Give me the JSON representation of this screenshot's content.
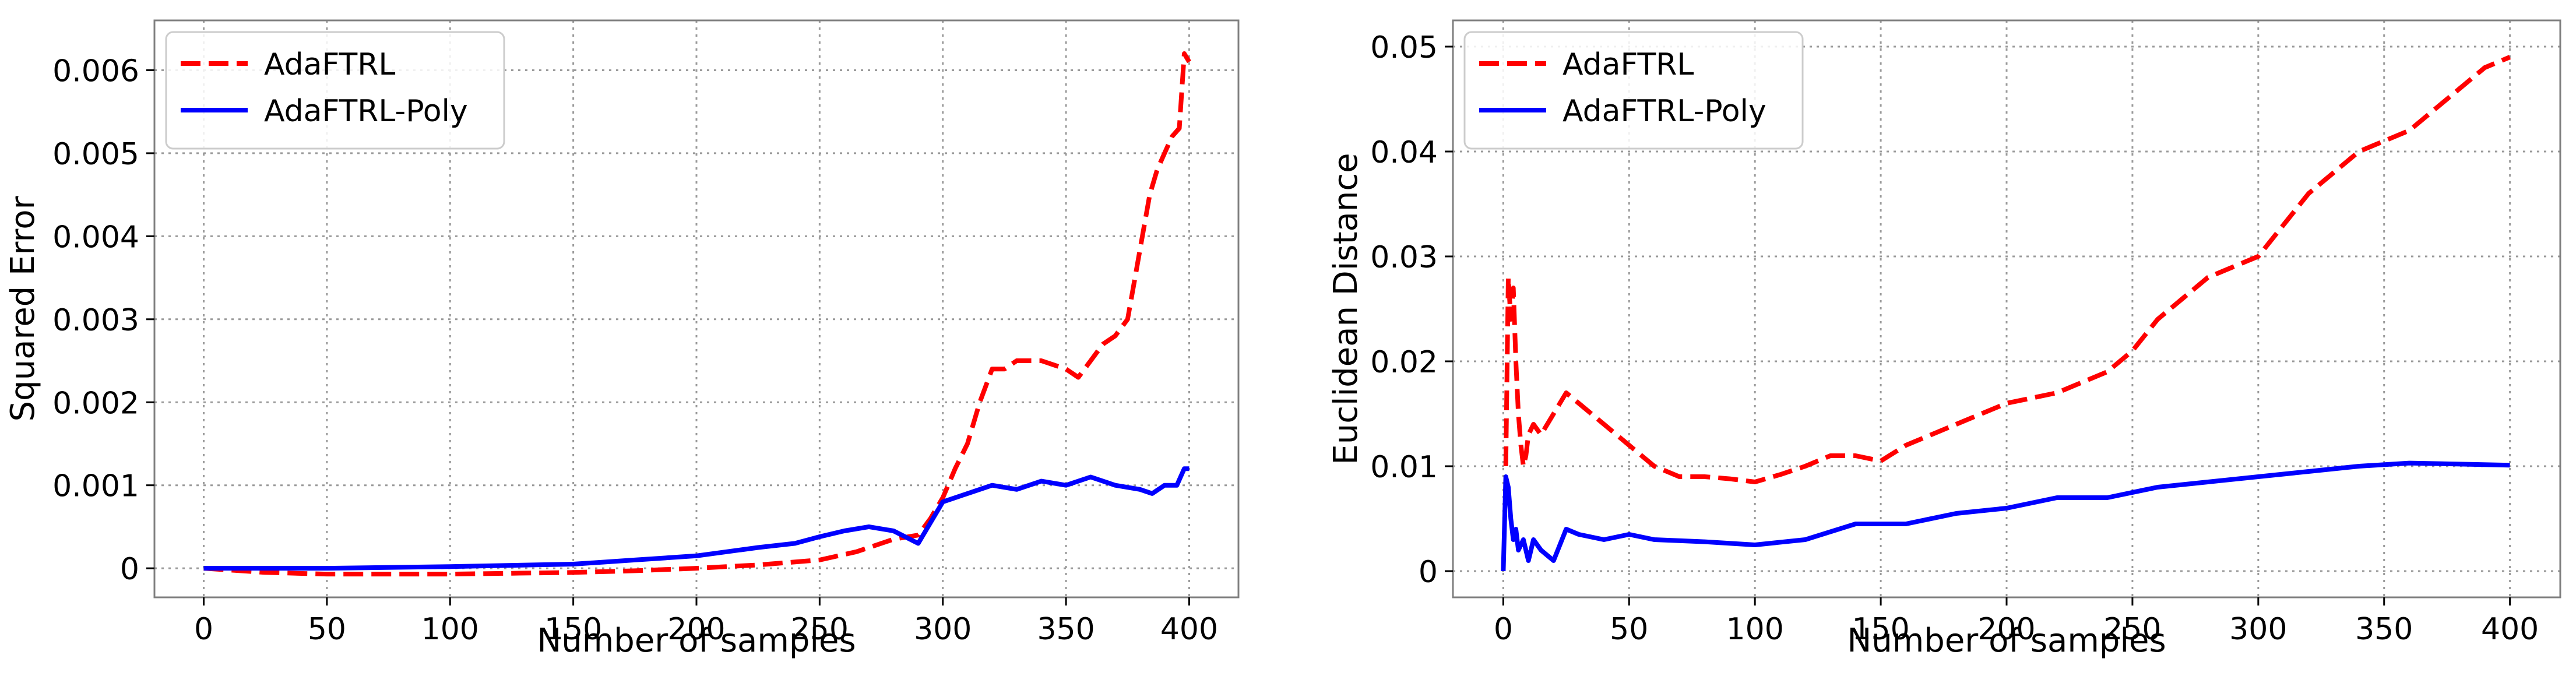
{
  "chart_data": [
    {
      "type": "line",
      "title": "",
      "xlabel": "Number of samples",
      "ylabel": "Squared Error",
      "xlim": [
        -20,
        420
      ],
      "ylim": [
        -0.00035,
        0.0066
      ],
      "xticks": [
        0,
        50,
        100,
        150,
        200,
        250,
        300,
        350,
        400
      ],
      "xtick_labels": [
        "0",
        "50",
        "100",
        "150",
        "200",
        "250",
        "300",
        "350",
        "400"
      ],
      "yticks": [
        0,
        0.001,
        0.002,
        0.003,
        0.004,
        0.005,
        0.006
      ],
      "ytick_labels": [
        "0",
        "0.001",
        "0.002",
        "0.003",
        "0.004",
        "0.005",
        "0.006"
      ],
      "grid": true,
      "legend_position": "top-left",
      "series": [
        {
          "name": "AdaFTRL",
          "color": "#ff0000",
          "style": "dashed",
          "x": [
            0,
            25,
            50,
            100,
            125,
            150,
            175,
            200,
            225,
            250,
            265,
            280,
            290,
            295,
            300,
            305,
            310,
            315,
            320,
            325,
            330,
            340,
            350,
            355,
            360,
            365,
            370,
            375,
            378,
            381,
            384,
            387,
            390,
            393,
            396,
            398,
            400
          ],
          "y": [
            0,
            -5e-05,
            -7e-05,
            -7e-05,
            -6e-05,
            -5e-05,
            -3e-05,
            0.0,
            4e-05,
            0.0001,
            0.0002,
            0.00035,
            0.0004,
            0.0006,
            0.00085,
            0.0012,
            0.0015,
            0.002,
            0.0024,
            0.0024,
            0.0025,
            0.0025,
            0.0024,
            0.0023,
            0.0025,
            0.0027,
            0.0028,
            0.003,
            0.0035,
            0.004,
            0.0045,
            0.0048,
            0.005,
            0.0052,
            0.0053,
            0.0062,
            0.0061
          ]
        },
        {
          "name": "AdaFTRL-Poly",
          "color": "#0000ff",
          "style": "solid",
          "x": [
            0,
            50,
            100,
            150,
            175,
            200,
            225,
            240,
            250,
            260,
            270,
            280,
            290,
            300,
            310,
            320,
            330,
            340,
            350,
            360,
            370,
            380,
            385,
            390,
            395,
            398,
            400
          ],
          "y": [
            0,
            0,
            2e-05,
            5e-05,
            0.0001,
            0.00015,
            0.00025,
            0.0003,
            0.00038,
            0.00045,
            0.0005,
            0.00045,
            0.0003,
            0.0008,
            0.0009,
            0.001,
            0.00095,
            0.00105,
            0.001,
            0.0011,
            0.001,
            0.00095,
            0.0009,
            0.001,
            0.001,
            0.0012,
            0.0012
          ]
        }
      ]
    },
    {
      "type": "line",
      "title": "",
      "xlabel": "Number of samples",
      "ylabel": "Euclidean Distance",
      "xlim": [
        -20,
        420
      ],
      "ylim": [
        -0.0025,
        0.0525
      ],
      "xticks": [
        0,
        50,
        100,
        150,
        200,
        250,
        300,
        350,
        400
      ],
      "xtick_labels": [
        "0",
        "50",
        "100",
        "150",
        "200",
        "250",
        "300",
        "350",
        "400"
      ],
      "yticks": [
        0,
        0.01,
        0.02,
        0.03,
        0.04,
        0.05
      ],
      "ytick_labels": [
        "0",
        "0.01",
        "0.02",
        "0.03",
        "0.04",
        "0.05"
      ],
      "grid": true,
      "legend_position": "top-left",
      "series": [
        {
          "name": "AdaFTRL",
          "color": "#ff0000",
          "style": "dashed",
          "x": [
            1,
            2,
            3,
            4,
            5,
            6,
            7,
            8,
            9,
            10,
            12,
            15,
            20,
            25,
            30,
            40,
            50,
            60,
            70,
            80,
            90,
            100,
            110,
            120,
            130,
            140,
            150,
            160,
            180,
            200,
            220,
            240,
            250,
            260,
            270,
            280,
            290,
            300,
            310,
            320,
            330,
            340,
            350,
            360,
            370,
            380,
            390,
            400
          ],
          "y": [
            0.01,
            0.028,
            0.024,
            0.027,
            0.02,
            0.015,
            0.012,
            0.01,
            0.011,
            0.013,
            0.014,
            0.013,
            0.015,
            0.017,
            0.016,
            0.014,
            0.012,
            0.01,
            0.009,
            0.009,
            0.0088,
            0.0085,
            0.0092,
            0.01,
            0.011,
            0.011,
            0.0105,
            0.012,
            0.014,
            0.016,
            0.017,
            0.019,
            0.021,
            0.024,
            0.026,
            0.028,
            0.029,
            0.03,
            0.033,
            0.036,
            0.038,
            0.04,
            0.041,
            0.042,
            0.044,
            0.046,
            0.048,
            0.049
          ]
        },
        {
          "name": "AdaFTRL-Poly",
          "color": "#0000ff",
          "style": "solid",
          "x": [
            0,
            1,
            2,
            3,
            4,
            5,
            6,
            8,
            10,
            12,
            15,
            20,
            25,
            30,
            40,
            50,
            60,
            80,
            100,
            120,
            140,
            160,
            180,
            200,
            220,
            240,
            260,
            280,
            300,
            320,
            340,
            360,
            380,
            400
          ],
          "y": [
            0,
            0.009,
            0.008,
            0.005,
            0.003,
            0.004,
            0.002,
            0.003,
            0.001,
            0.003,
            0.002,
            0.001,
            0.004,
            0.0035,
            0.003,
            0.0035,
            0.003,
            0.0028,
            0.0025,
            0.003,
            0.0045,
            0.0045,
            0.0055,
            0.006,
            0.007,
            0.007,
            0.008,
            0.0085,
            0.009,
            0.0095,
            0.01,
            0.0103,
            0.0102,
            0.0101
          ]
        }
      ]
    }
  ]
}
